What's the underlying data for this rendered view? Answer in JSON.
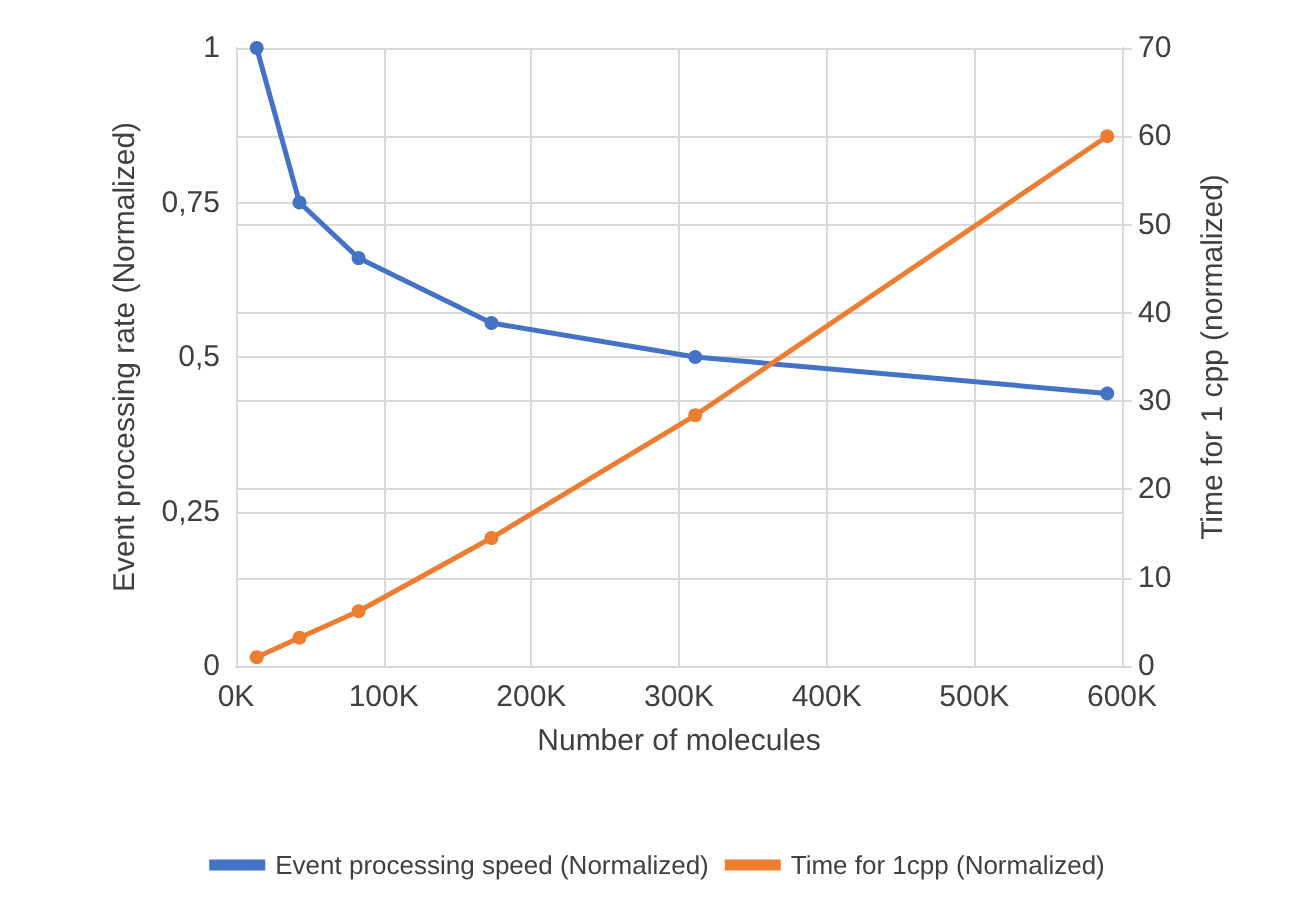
{
  "chart_data": {
    "type": "line",
    "xlabel": "Number of molecules",
    "ylabel": "Event processing rate (Normalized)",
    "y2label": "Time for 1 cpp (normalized)",
    "x": [
      14000,
      43000,
      83000,
      173000,
      311000,
      590000
    ],
    "series": [
      {
        "name": "Event processing speed (Normalized)",
        "color": "#4472c4",
        "values": [
          1.0,
          0.75,
          0.66,
          0.555,
          0.5,
          0.441
        ]
      },
      {
        "name": "Time for 1cpp (Normalized)",
        "color": "#ed7d31",
        "axis": "y2",
        "values": [
          1.0,
          3.2,
          6.2,
          14.5,
          28.4,
          60
        ]
      }
    ],
    "xlim": [
      0,
      600000
    ],
    "xticks": [
      {
        "value": 0,
        "label": "0K"
      },
      {
        "value": 100000,
        "label": "100K"
      },
      {
        "value": 200000,
        "label": "200K"
      },
      {
        "value": 300000,
        "label": "300K"
      },
      {
        "value": 400000,
        "label": "400K"
      },
      {
        "value": 500000,
        "label": "500K"
      },
      {
        "value": 600000,
        "label": "600K"
      }
    ],
    "ylim": [
      0,
      1
    ],
    "yticks": [
      0,
      {
        "value": 0.25,
        "label": "0,25"
      },
      {
        "value": 0.5,
        "label": "0,5"
      },
      {
        "value": 0.75,
        "label": "0,75"
      },
      1
    ],
    "y2lim": [
      0,
      70
    ],
    "y2ticks": [
      0,
      10,
      20,
      30,
      40,
      50,
      60,
      70
    ],
    "grid": true,
    "legend": "bottom",
    "marker": "circle",
    "line_style": "solid"
  }
}
